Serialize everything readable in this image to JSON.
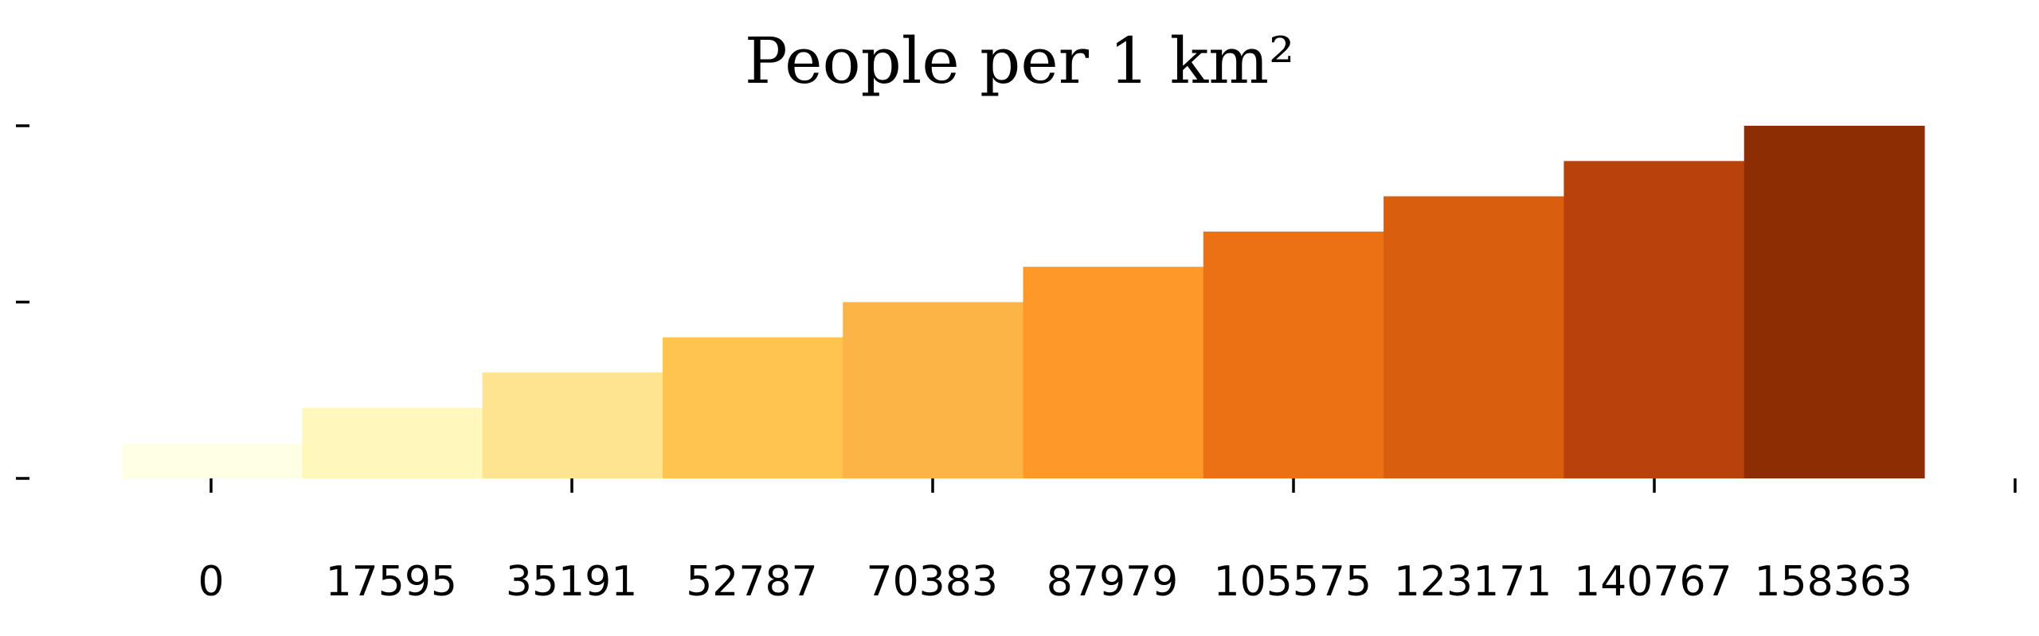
{
  "chart_data": {
    "type": "bar",
    "title": "People per 1 km²",
    "xlabel": "",
    "ylabel": "",
    "bins": [
      1,
      2,
      3,
      4,
      5,
      6,
      7,
      8,
      9,
      10
    ],
    "values": [
      1,
      2,
      3,
      4,
      5,
      6,
      7,
      8,
      9,
      10
    ],
    "colors": [
      "#ffffe5",
      "#fff7bc",
      "#fee391",
      "#fec44f",
      "#fdb446",
      "#fe9929",
      "#ec7014",
      "#d95f0e",
      "#b8410c",
      "#8c2d04"
    ],
    "tick_labels": [
      "0",
      "17595",
      "35191",
      "52787",
      "70383",
      "87979",
      "105575",
      "123171",
      "140767",
      "158363"
    ],
    "ylim": [
      0,
      10
    ],
    "grid": false,
    "legend": false
  }
}
